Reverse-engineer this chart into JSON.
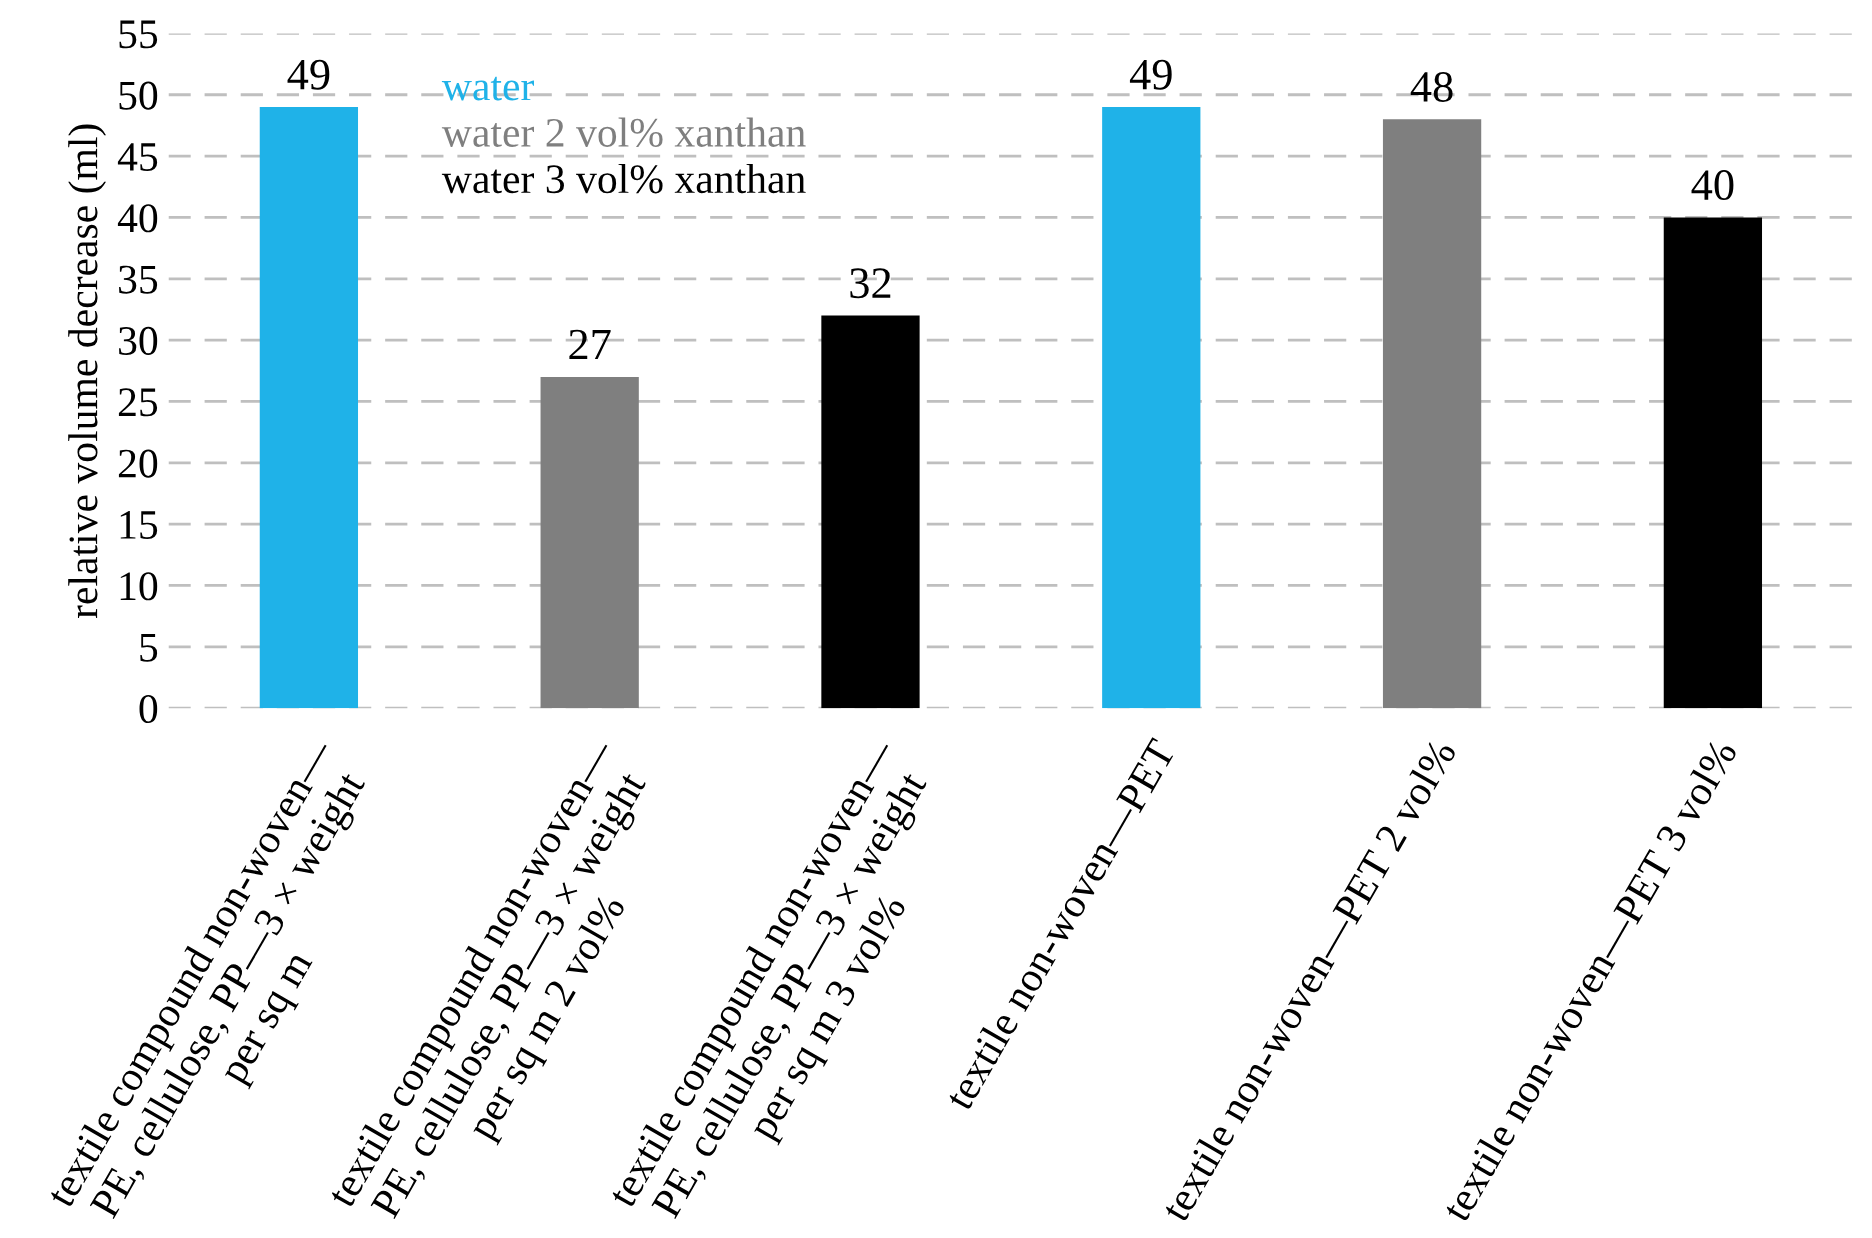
{
  "chart_data": {
    "type": "bar",
    "ylabel": "relative volume decrease (ml)",
    "categories": [
      "textile compound non-woven—\nPE, cellulose, PP—3 × weight\nper sq m",
      "textile compound non-woven—\nPE, cellulose, PP—3 × weight\nper sq m 2 vol%",
      "textile compound non-woven—\nPE, cellulose, PP—3 × weight\nper sq m 3 vol%",
      "textile non-woven—PET",
      "textile non-woven—PET 2 vol%",
      "textile non-woven—PET 3 vol%"
    ],
    "series": [
      {
        "name": "water",
        "color": "#1fb2e8",
        "values": [
          49,
          null,
          null,
          49,
          null,
          null
        ]
      },
      {
        "name": "water 2 vol% xanthan",
        "color": "#7f7f7f",
        "values": [
          null,
          27,
          null,
          null,
          48,
          null
        ]
      },
      {
        "name": "water 3 vol% xanthan",
        "color": "#000000",
        "values": [
          null,
          null,
          32,
          null,
          null,
          40
        ]
      }
    ],
    "ylim": [
      0,
      55
    ],
    "yticks": [
      0,
      5,
      10,
      15,
      20,
      25,
      30,
      35,
      40,
      45,
      50,
      55
    ],
    "grid": "y",
    "legend": "top left",
    "data_labels": true
  }
}
